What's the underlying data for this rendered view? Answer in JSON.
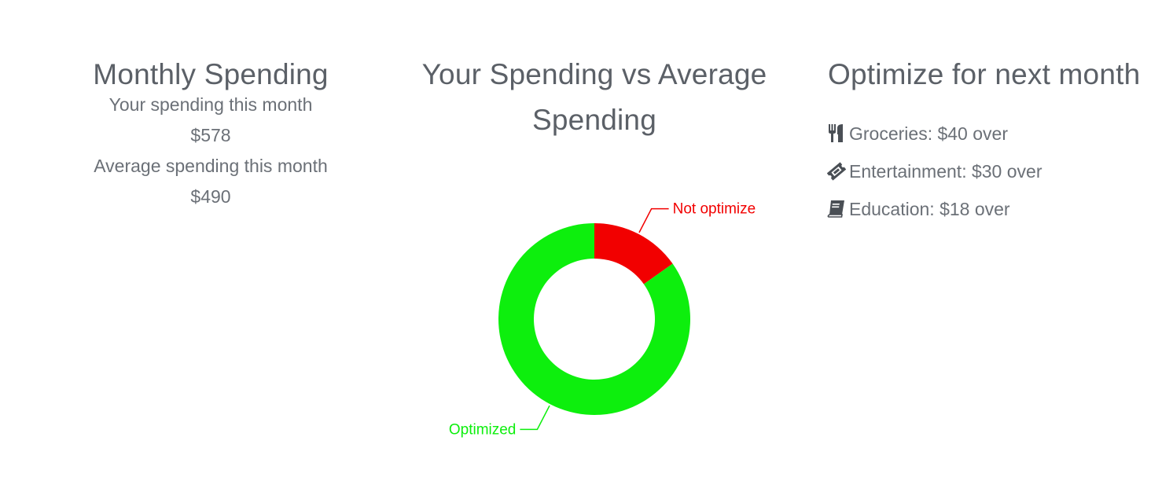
{
  "monthly": {
    "title": "Monthly Spending",
    "your_label": "Your spending this month",
    "your_value": "$578",
    "avg_label": "Average spending this month",
    "avg_value": "$490"
  },
  "comparison": {
    "title_line1": "Your Spending vs Average",
    "title_line2": "Spending"
  },
  "optimize": {
    "title": "Optimize for next month",
    "items": [
      {
        "icon": "utensils-icon",
        "text": "Groceries: $40 over"
      },
      {
        "icon": "ticket-icon",
        "text": "Entertainment: $30 over"
      },
      {
        "icon": "book-icon",
        "text": "Education: $18 over"
      }
    ]
  },
  "chart_data": {
    "type": "pie",
    "donut": true,
    "slices": [
      {
        "label": "Not optimize",
        "value": 15.2,
        "color": "#f20000"
      },
      {
        "label": "Optimized",
        "value": 84.8,
        "color": "#0def0d"
      }
    ]
  }
}
